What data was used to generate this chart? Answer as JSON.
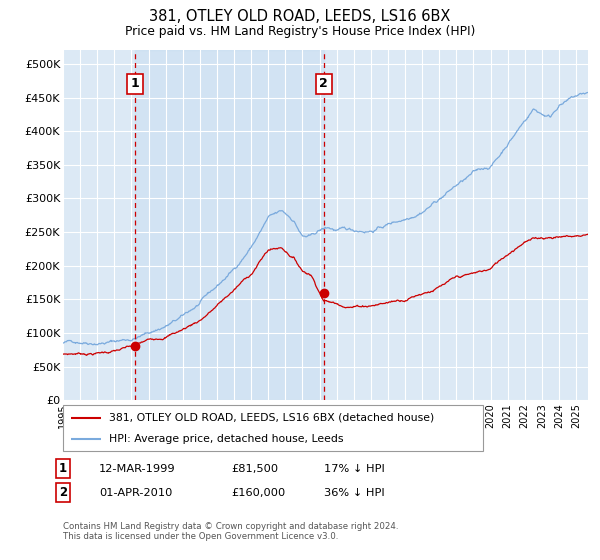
{
  "title1": "381, OTLEY OLD ROAD, LEEDS, LS16 6BX",
  "title2": "Price paid vs. HM Land Registry's House Price Index (HPI)",
  "background_color": "#ffffff",
  "plot_bg_color": "#dce9f5",
  "grid_color": "#ffffff",
  "hpi_color": "#7aaadd",
  "property_color": "#cc0000",
  "purchase1_date_num": 1999.19,
  "purchase1_price": 81500,
  "purchase1_label": "1",
  "purchase2_date_num": 2010.25,
  "purchase2_price": 160000,
  "purchase2_label": "2",
  "ylim": [
    0,
    520000
  ],
  "xlim_start": 1995.0,
  "xlim_end": 2025.7,
  "legend_line1": "381, OTLEY OLD ROAD, LEEDS, LS16 6BX (detached house)",
  "legend_line2": "HPI: Average price, detached house, Leeds",
  "table_row1": [
    "1",
    "12-MAR-1999",
    "£81,500",
    "17% ↓ HPI"
  ],
  "table_row2": [
    "2",
    "01-APR-2010",
    "£160,000",
    "36% ↓ HPI"
  ],
  "footnote": "Contains HM Land Registry data © Crown copyright and database right 2024.\nThis data is licensed under the Open Government Licence v3.0.",
  "yticks": [
    0,
    50000,
    100000,
    150000,
    200000,
    250000,
    300000,
    350000,
    400000,
    450000,
    500000
  ],
  "ytick_labels": [
    "£0",
    "£50K",
    "£100K",
    "£150K",
    "£200K",
    "£250K",
    "£300K",
    "£350K",
    "£400K",
    "£450K",
    "£500K"
  ]
}
